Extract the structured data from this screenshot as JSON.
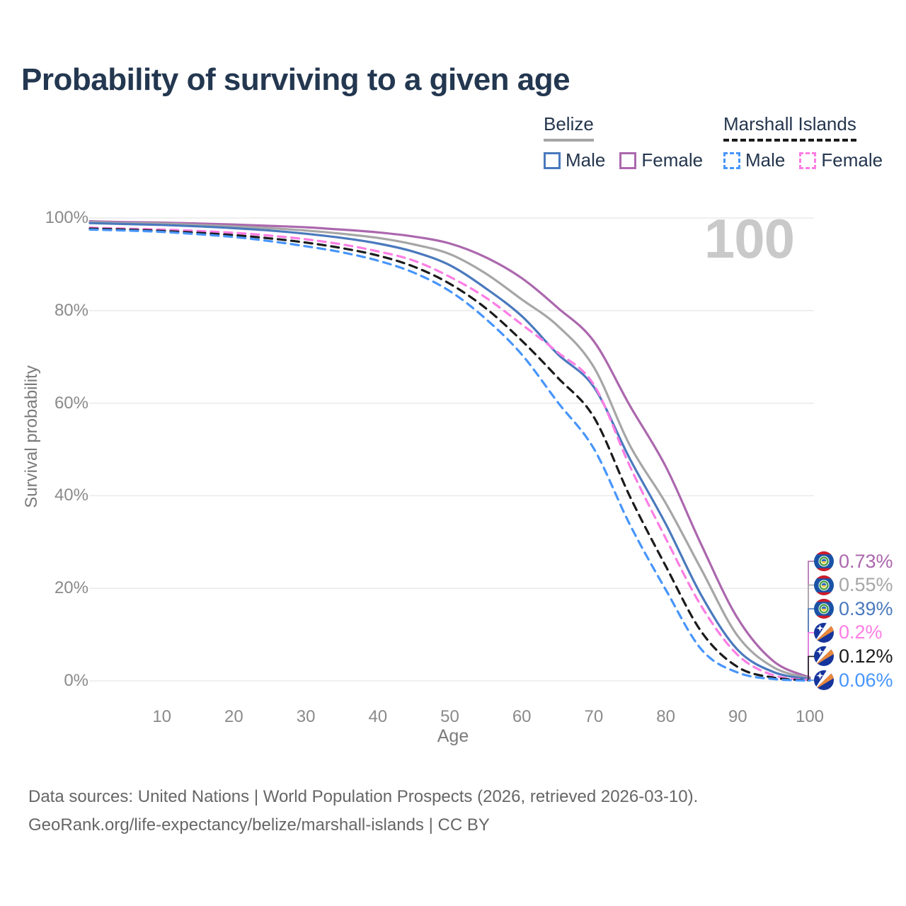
{
  "header": {
    "title": "Probability of surviving to a given age"
  },
  "legend": {
    "groups": [
      {
        "country": "Belize",
        "line_style": "solid",
        "underline_color": "#a6a6a6",
        "items": [
          {
            "label": "Male",
            "color": "#4a79bd"
          },
          {
            "label": "Female",
            "color": "#ab67ad"
          }
        ]
      },
      {
        "country": "Marshall Islands",
        "line_style": "dashed",
        "underline_color": "#1b1b1b",
        "items": [
          {
            "label": "Male",
            "color": "#4795fb"
          },
          {
            "label": "Female",
            "color": "#fc7de4"
          }
        ]
      }
    ]
  },
  "watermark": {
    "text": "100"
  },
  "chart_data": {
    "type": "line",
    "title": "Probability of surviving to a given age",
    "xlabel": "Age",
    "ylabel": "Survival probability",
    "xlim": [
      0,
      100
    ],
    "ylim": [
      0,
      100
    ],
    "grid": "horizontal-only",
    "grid_color": "#eaeaea",
    "legend_position": "top-right",
    "y_ticks": [
      {
        "pct": 0,
        "label": "0%"
      },
      {
        "pct": 20,
        "label": "20%"
      },
      {
        "pct": 40,
        "label": "40%"
      },
      {
        "pct": 60,
        "label": "60%"
      },
      {
        "pct": 80,
        "label": "80%"
      },
      {
        "pct": 100,
        "label": "100%"
      }
    ],
    "x_ticks": [
      {
        "age": 10,
        "label": "10"
      },
      {
        "age": 20,
        "label": "20"
      },
      {
        "age": 30,
        "label": "30"
      },
      {
        "age": 40,
        "label": "40"
      },
      {
        "age": 50,
        "label": "50"
      },
      {
        "age": 60,
        "label": "60"
      },
      {
        "age": 70,
        "label": "70"
      },
      {
        "age": 80,
        "label": "80"
      },
      {
        "age": 90,
        "label": "90"
      },
      {
        "age": 100,
        "label": "100"
      }
    ],
    "x": [
      0,
      5,
      10,
      15,
      20,
      25,
      30,
      35,
      40,
      45,
      50,
      55,
      60,
      65,
      70,
      75,
      80,
      85,
      90,
      95,
      100
    ],
    "series": [
      {
        "name": "Belize Female",
        "country": "Belize",
        "sex": "Female",
        "line": "solid",
        "color": "#ab67ad",
        "end_label": "0.73%",
        "values": [
          99.3,
          99.1,
          99.0,
          98.8,
          98.6,
          98.3,
          98.0,
          97.5,
          96.9,
          96.0,
          94.5,
          91.5,
          87.0,
          80.6,
          73.4,
          59.5,
          46.3,
          29.2,
          13.5,
          4.2,
          0.73
        ]
      },
      {
        "name": "Belize Both sexes",
        "country": "Belize",
        "sex": "Both",
        "line": "solid",
        "color": "#a6a6a6",
        "end_label": "0.55%",
        "values": [
          99.1,
          98.9,
          98.8,
          98.5,
          98.2,
          97.8,
          97.3,
          96.6,
          95.7,
          94.3,
          92.2,
          88.0,
          82.4,
          76.7,
          67.8,
          50.9,
          38.4,
          23.9,
          9.7,
          2.9,
          0.55
        ]
      },
      {
        "name": "Belize Male",
        "country": "Belize",
        "sex": "Male",
        "line": "solid",
        "color": "#4a79bd",
        "end_label": "0.39%",
        "values": [
          98.9,
          98.7,
          98.5,
          98.2,
          97.8,
          97.3,
          96.6,
          95.7,
          94.5,
          92.7,
          89.8,
          84.8,
          78.8,
          70.6,
          63.5,
          48.0,
          33.9,
          18.3,
          6.7,
          1.9,
          0.39
        ]
      },
      {
        "name": "Marshall Islands Female",
        "country": "Marshall Islands",
        "sex": "Female",
        "line": "dashed",
        "color": "#fc7de4",
        "end_label": "0.2%",
        "values": [
          97.9,
          97.7,
          97.5,
          97.2,
          96.8,
          96.2,
          95.4,
          94.3,
          92.8,
          90.8,
          87.3,
          82.8,
          77.0,
          71.0,
          64.0,
          46.4,
          30.8,
          16.0,
          5.6,
          1.2,
          0.2
        ]
      },
      {
        "name": "Marshall Islands Both sexes",
        "country": "Marshall Islands",
        "sex": "Both",
        "line": "dashed",
        "color": "#1b1b1b",
        "end_label": "0.12%",
        "values": [
          97.7,
          97.5,
          97.2,
          96.8,
          96.3,
          95.6,
          94.7,
          93.5,
          91.9,
          89.5,
          85.8,
          80.5,
          73.5,
          65.5,
          57.0,
          39.9,
          24.8,
          10.5,
          3.0,
          0.7,
          0.12
        ]
      },
      {
        "name": "Marshall Islands Male",
        "country": "Marshall Islands",
        "sex": "Male",
        "line": "dashed",
        "color": "#4795fb",
        "end_label": "0.06%",
        "values": [
          97.5,
          97.3,
          97.0,
          96.5,
          95.9,
          95.0,
          93.9,
          92.6,
          90.8,
          88.2,
          84.2,
          78.2,
          70.5,
          60.2,
          50.2,
          33.8,
          19.7,
          6.7,
          1.8,
          0.4,
          0.06
        ]
      }
    ]
  },
  "footer": {
    "line1": "Data sources: United Nations | World Population Prospects (2026, retrieved 2026-03-10).",
    "line2": "GeoRank.org/life-expectancy/belize/marshall-islands | CC BY"
  }
}
